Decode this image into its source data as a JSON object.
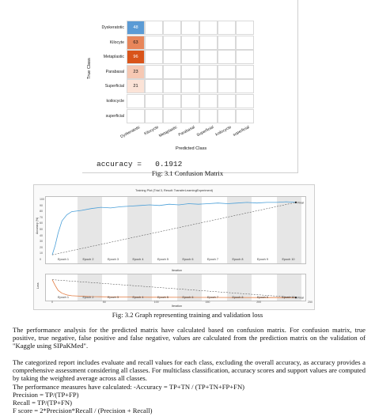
{
  "confusion_matrix": {
    "row_labels": [
      "Dyskeratotic",
      "Kilocyte",
      "Metaplastic",
      "Parabasal",
      "Superficial",
      "koilocycle",
      "superficial"
    ],
    "col_labels": [
      "Dyskeratotic",
      "Kilocycle",
      "Metaplastic",
      "Parabasal",
      "Superficial",
      "koilocycle",
      "superficial"
    ],
    "first_column_values": [
      "48",
      "63",
      "96",
      "23",
      "21"
    ],
    "first_column_colors": [
      "#5b9bd5",
      "#e8865a",
      "#d9541a",
      "#f6c8b3",
      "#fbe3d7"
    ],
    "ylabel": "True Class",
    "xlabel": "Predicted Class",
    "accuracy_text": "accuracy =   0.1912"
  },
  "caption1": "Fig: 3.1 Confusion Matrix",
  "training_plot": {
    "title": "Training Plot (Trial 3, Result: TransferLearningExperiment)",
    "ylabel_top": "Accuracy (%)",
    "ylabel_bottom": "Loss",
    "xlabel": "Iteration",
    "final_label_top": "Final",
    "final_label_bottom": "Final",
    "epochs": [
      "Epoch 1",
      "Epoch 2",
      "Epoch 3",
      "Epoch 4",
      "Epoch 5",
      "Epoch 6",
      "Epoch 7",
      "Epoch 8",
      "Epoch 9",
      "Epoch 10"
    ],
    "top_y_ticks": [
      "100",
      "90",
      "80",
      "70",
      "60",
      "50",
      "40",
      "30",
      "20",
      "10",
      "0"
    ],
    "x_ticks": [
      "0",
      "50",
      "100",
      "150",
      "200",
      "250"
    ]
  },
  "chart_data": {
    "type": "line",
    "title": "Training Plot (Trial 3, Result: TransferLearningExperiment)",
    "xlabel": "Iteration",
    "panels": [
      {
        "ylabel": "Accuracy (%)",
        "ylim": [
          0,
          100
        ],
        "xlim": [
          0,
          250
        ],
        "series": [
          {
            "x": [
              0,
              3,
              6,
              10,
              15,
              20,
              30,
              40,
              50,
              60,
              70,
              80,
              90,
              100,
              110,
              120,
              130,
              140,
              150,
              160,
              170,
              180,
              190,
              200,
              210,
              220,
              230,
              240,
              250
            ],
            "y": [
              10,
              25,
              45,
              65,
              75,
              80,
              82,
              85,
              87,
              86,
              88,
              89,
              90,
              91,
              90,
              92,
              91,
              93,
              92,
              93,
              94,
              93,
              94,
              95,
              94,
              95,
              95,
              96,
              95
            ]
          }
        ]
      },
      {
        "ylabel": "Loss",
        "ylim": [
          0,
          3
        ],
        "xlim": [
          0,
          250
        ],
        "series": [
          {
            "x": [
              0,
              3,
              6,
              10,
              15,
              20,
              30,
              40,
              60,
              80,
              100,
              130,
              160,
              190,
              220,
              250
            ],
            "y": [
              2.6,
              1.8,
              1.1,
              0.7,
              0.45,
              0.35,
              0.28,
              0.22,
              0.18,
              0.15,
              0.13,
              0.12,
              0.11,
              0.1,
              0.09,
              0.09
            ]
          }
        ]
      }
    ]
  },
  "caption2": "Fig: 3.2 Graph representing training and validation loss",
  "paragraphs": [
    "The performance analysis for the predicted matrix have calculated based on confusion matrix. For confusion matrix, true positive, true negative, false positive and false negative, values are calculated from the prediction matrix on the validation of \"Kaggle using SIPaKMed\".",
    "The categorized report includes evaluate and recall values for each class, excluding the overall accuracy, as accuracy provides a comprehensive assessment considering all classes. For multiclass classification, accuracy scores and support values are computed by taking the weighted average across all classes.",
    "The performance measures have calculated: -Accuracy = TP+TN / (TP+TN+FP+FN)",
    "Precision = TP/(TP+FP)",
    "Recall = TP/(TP+FN)",
    "F score = 2*Precision*Recall / (Precision + Recall)"
  ]
}
